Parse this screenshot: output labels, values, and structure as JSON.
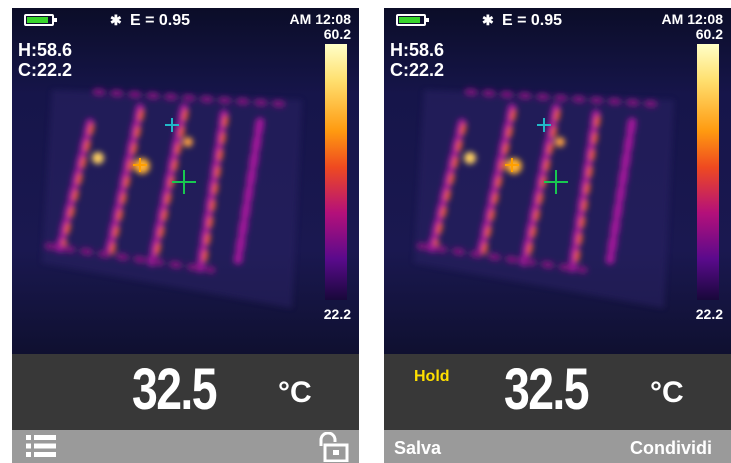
{
  "colors": {
    "battery": "#39d62c",
    "hold_text": "#ffe000",
    "reading_bg": "#383838",
    "bottom_bar_bg": "#9a9a9a",
    "crosshair_max": "#ffa000",
    "crosshair_center": "#18c850",
    "crosshair_min": "#22b8c8"
  },
  "left_screen": {
    "status": {
      "bluetooth_icon": "bluetooth-icon",
      "emissivity": "E = 0.95",
      "time": "AM 12:08",
      "battery_level": 0.9
    },
    "hot_label": "H:58.6",
    "cold_label": "C:22.2",
    "scale": {
      "max": "60.2",
      "min": "22.2"
    },
    "reading": {
      "value": "32.5",
      "unit": "°C"
    },
    "bottom_bar": {
      "menu_icon": "menu-list-icon",
      "lock_icon": "unlock-icon"
    }
  },
  "right_screen": {
    "status": {
      "bluetooth_icon": "bluetooth-icon",
      "emissivity": "E = 0.95",
      "time": "AM 12:08",
      "battery_level": 0.9
    },
    "hot_label": "H:58.6",
    "cold_label": "C:22.2",
    "scale": {
      "max": "60.2",
      "min": "22.2"
    },
    "reading": {
      "hold": "Hold",
      "value": "32.5",
      "unit": "°C"
    },
    "bottom_bar": {
      "save": "Salva",
      "share": "Condividi"
    }
  }
}
